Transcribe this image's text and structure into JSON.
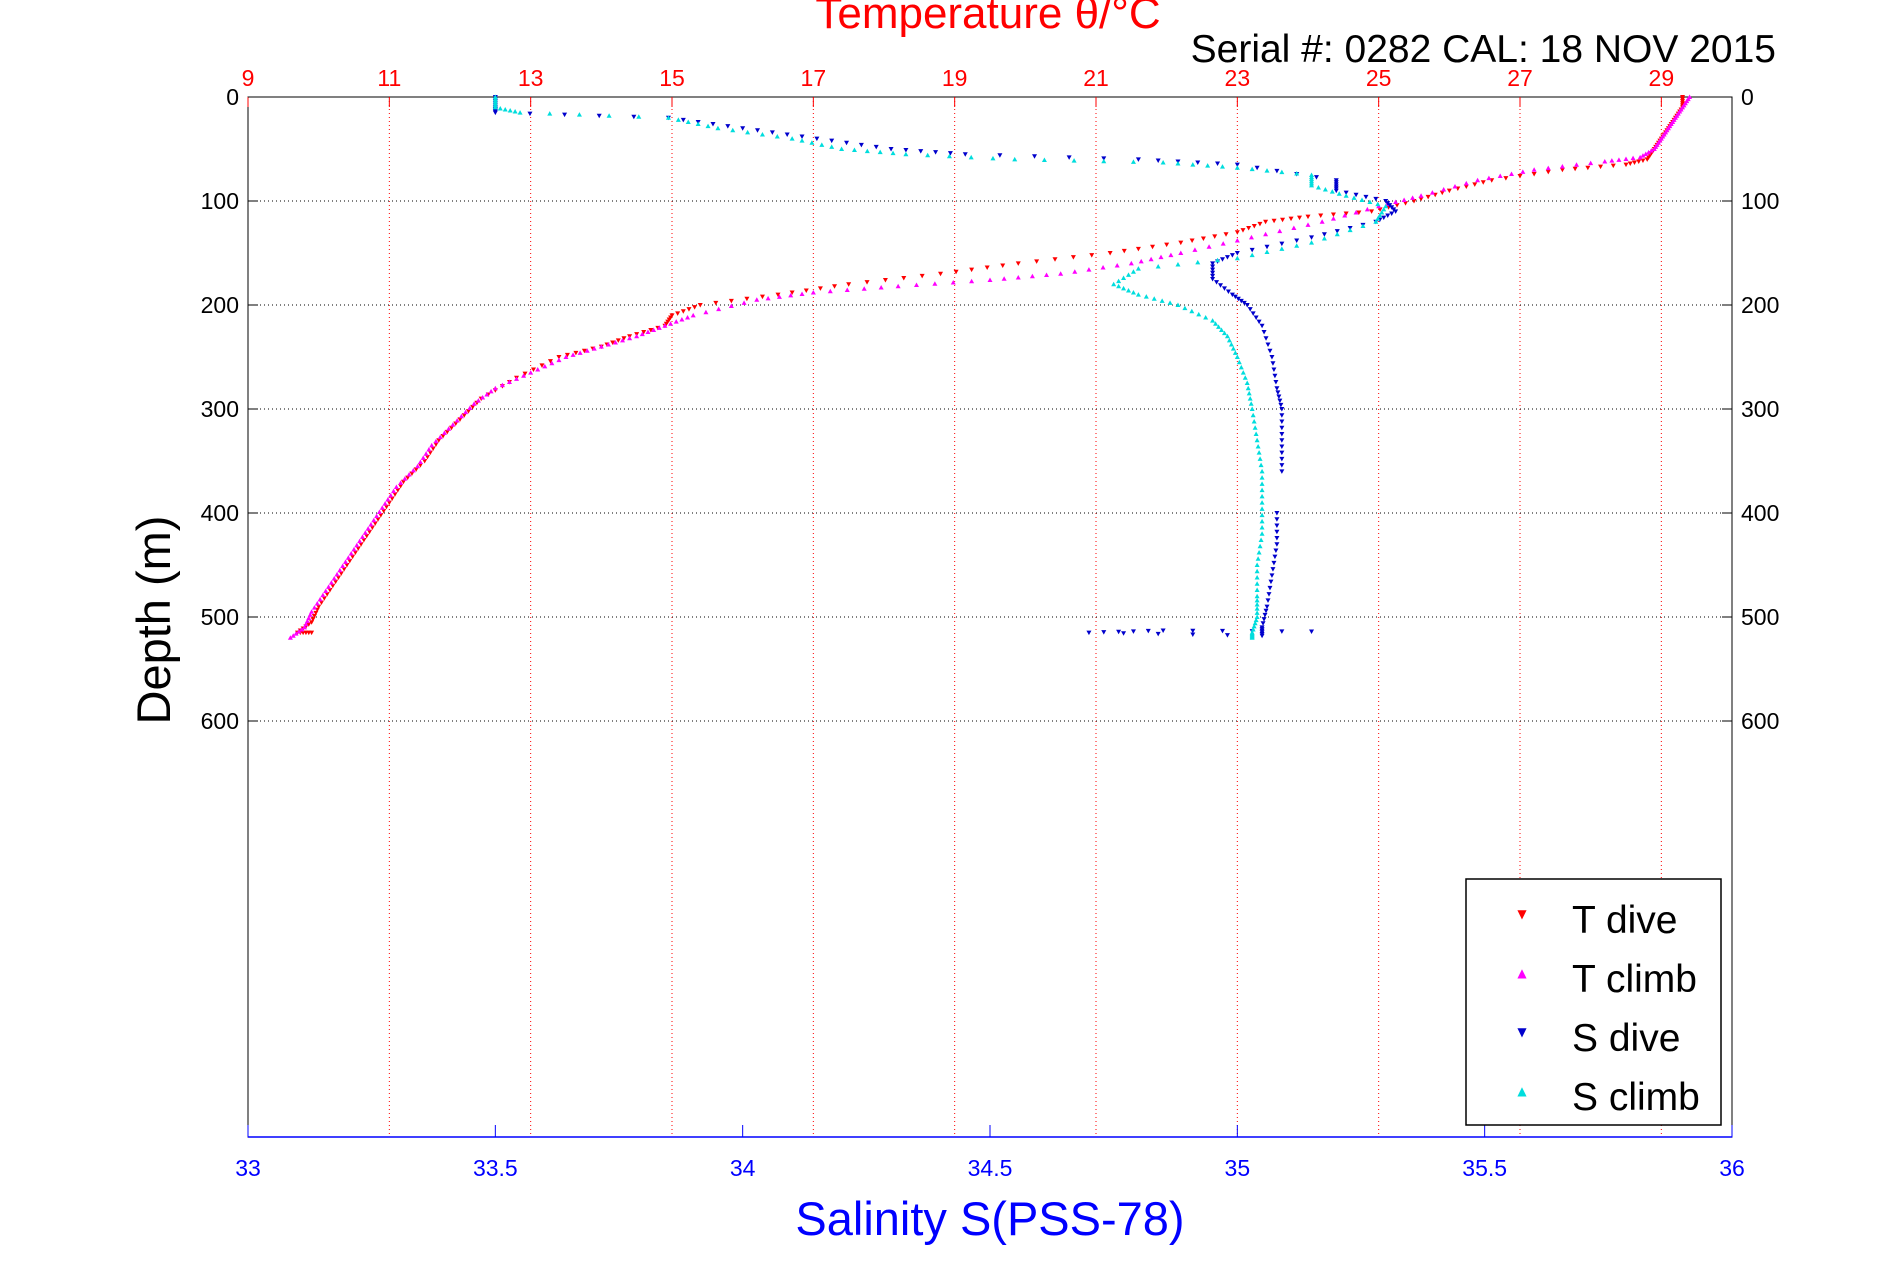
{
  "chart_data": {
    "type": "scatter",
    "title": "Temperature θ/°C",
    "subtitle": "Serial #: 0282  CAL: 18 NOV 2015",
    "xlabel_top": "Temperature θ/°C",
    "xlabel_bottom": "Salinity S(PSS-78)",
    "ylabel": "Depth (m)",
    "axes": {
      "temperature": {
        "range": [
          9,
          30
        ],
        "ticks": [
          9,
          11,
          13,
          15,
          17,
          19,
          21,
          23,
          25,
          27,
          29
        ]
      },
      "salinity": {
        "range": [
          33,
          36
        ],
        "ticks": [
          33,
          33.5,
          34,
          34.5,
          35,
          35.5,
          36
        ]
      },
      "depth": {
        "range": [
          0,
          1000
        ],
        "reversed": true,
        "ticks": [
          0,
          100,
          200,
          300,
          400,
          500,
          600
        ]
      }
    },
    "grid": true,
    "legend_position": "bottom-right",
    "colors": {
      "t_dive": "#ff0000",
      "t_climb": "#ff00ff",
      "s_dive": "#0000cc",
      "s_climb": "#00dddd",
      "temperature_axis": "#ff0000",
      "salinity_axis": "#0000ff"
    },
    "series": [
      {
        "name": "T dive",
        "variable": "temperature",
        "marker": "triangle-down",
        "points": [
          [
            29.3,
            0
          ],
          [
            29.3,
            10
          ],
          [
            29.2,
            20
          ],
          [
            29.1,
            30
          ],
          [
            29.0,
            40
          ],
          [
            28.9,
            50
          ],
          [
            28.8,
            60
          ],
          [
            28.5,
            65
          ],
          [
            27.6,
            70
          ],
          [
            26.6,
            80
          ],
          [
            26.0,
            90
          ],
          [
            25.5,
            100
          ],
          [
            24.9,
            110
          ],
          [
            24.0,
            115
          ],
          [
            23.4,
            120
          ],
          [
            23.0,
            130
          ],
          [
            22.2,
            140
          ],
          [
            21.2,
            150
          ],
          [
            19.9,
            160
          ],
          [
            18.8,
            170
          ],
          [
            17.5,
            180
          ],
          [
            16.5,
            190
          ],
          [
            15.4,
            200
          ],
          [
            15.0,
            210
          ],
          [
            14.9,
            220
          ],
          [
            14.4,
            230
          ],
          [
            14.0,
            240
          ],
          [
            13.4,
            250
          ],
          [
            12.8,
            270
          ],
          [
            12.3,
            290
          ],
          [
            12.0,
            310
          ],
          [
            11.7,
            330
          ],
          [
            11.5,
            350
          ],
          [
            11.2,
            370
          ],
          [
            11.0,
            390
          ],
          [
            10.8,
            410
          ],
          [
            10.6,
            430
          ],
          [
            10.4,
            450
          ],
          [
            10.2,
            470
          ],
          [
            10.0,
            490
          ],
          [
            9.9,
            505
          ],
          [
            9.7,
            515
          ],
          [
            9.9,
            515
          ]
        ]
      },
      {
        "name": "T climb",
        "variable": "temperature",
        "marker": "triangle-up",
        "points": [
          [
            29.4,
            0
          ],
          [
            29.3,
            10
          ],
          [
            29.2,
            20
          ],
          [
            29.1,
            30
          ],
          [
            29.0,
            40
          ],
          [
            28.9,
            50
          ],
          [
            28.7,
            58
          ],
          [
            28.2,
            62
          ],
          [
            27.2,
            70
          ],
          [
            26.4,
            80
          ],
          [
            25.6,
            95
          ],
          [
            25.0,
            105
          ],
          [
            24.2,
            120
          ],
          [
            23.2,
            135
          ],
          [
            22.2,
            150
          ],
          [
            21.5,
            160
          ],
          [
            20.5,
            170
          ],
          [
            19.5,
            176
          ],
          [
            18.2,
            182
          ],
          [
            17.0,
            188
          ],
          [
            16.2,
            195
          ],
          [
            15.3,
            210
          ],
          [
            14.9,
            220
          ],
          [
            14.5,
            230
          ],
          [
            14.0,
            240
          ],
          [
            13.5,
            250
          ],
          [
            13.0,
            265
          ],
          [
            12.5,
            280
          ],
          [
            12.2,
            295
          ],
          [
            11.9,
            315
          ],
          [
            11.6,
            335
          ],
          [
            11.4,
            355
          ],
          [
            11.1,
            375
          ],
          [
            10.9,
            395
          ],
          [
            10.7,
            415
          ],
          [
            10.5,
            435
          ],
          [
            10.3,
            455
          ],
          [
            10.1,
            475
          ],
          [
            9.9,
            495
          ],
          [
            9.8,
            510
          ],
          [
            9.6,
            520
          ]
        ]
      },
      {
        "name": "S dive",
        "variable": "salinity",
        "marker": "triangle-down",
        "points": [
          [
            33.5,
            0
          ],
          [
            33.5,
            10
          ],
          [
            33.5,
            15
          ],
          [
            33.85,
            20
          ],
          [
            34.0,
            30
          ],
          [
            34.15,
            40
          ],
          [
            34.3,
            50
          ],
          [
            34.45,
            55
          ],
          [
            34.8,
            60
          ],
          [
            35.0,
            65
          ],
          [
            35.2,
            80
          ],
          [
            35.2,
            90
          ],
          [
            35.3,
            100
          ],
          [
            35.32,
            110
          ],
          [
            35.28,
            120
          ],
          [
            35.15,
            135
          ],
          [
            35.0,
            150
          ],
          [
            34.95,
            160
          ],
          [
            34.95,
            175
          ],
          [
            34.99,
            190
          ],
          [
            35.02,
            200
          ],
          [
            35.05,
            220
          ],
          [
            35.07,
            250
          ],
          [
            35.08,
            280
          ],
          [
            35.09,
            300
          ],
          [
            35.09,
            330
          ],
          [
            35.09,
            360
          ],
          [
            35.08,
            400
          ],
          [
            35.08,
            430
          ],
          [
            35.07,
            460
          ],
          [
            35.06,
            490
          ],
          [
            35.05,
            510
          ],
          [
            35.05,
            518
          ],
          [
            34.7,
            515
          ],
          [
            34.85,
            513
          ],
          [
            35.15,
            514
          ]
        ]
      },
      {
        "name": "S climb",
        "variable": "salinity",
        "marker": "triangle-up",
        "points": [
          [
            33.5,
            0
          ],
          [
            33.5,
            10
          ],
          [
            33.55,
            15
          ],
          [
            33.85,
            20
          ],
          [
            33.95,
            30
          ],
          [
            34.1,
            40
          ],
          [
            34.2,
            50
          ],
          [
            34.33,
            55
          ],
          [
            34.55,
            60
          ],
          [
            34.85,
            63
          ],
          [
            35.0,
            68
          ],
          [
            35.15,
            75
          ],
          [
            35.15,
            85
          ],
          [
            35.22,
            95
          ],
          [
            35.3,
            105
          ],
          [
            35.28,
            120
          ],
          [
            35.15,
            140
          ],
          [
            35.0,
            155
          ],
          [
            34.8,
            165
          ],
          [
            34.75,
            180
          ],
          [
            34.8,
            190
          ],
          [
            34.88,
            200
          ],
          [
            34.95,
            215
          ],
          [
            34.98,
            230
          ],
          [
            35.0,
            250
          ],
          [
            35.02,
            275
          ],
          [
            35.03,
            300
          ],
          [
            35.04,
            330
          ],
          [
            35.05,
            360
          ],
          [
            35.05,
            390
          ],
          [
            35.05,
            420
          ],
          [
            35.04,
            450
          ],
          [
            35.04,
            480
          ],
          [
            35.04,
            500
          ],
          [
            35.03,
            515
          ],
          [
            35.03,
            520
          ]
        ]
      }
    ]
  }
}
